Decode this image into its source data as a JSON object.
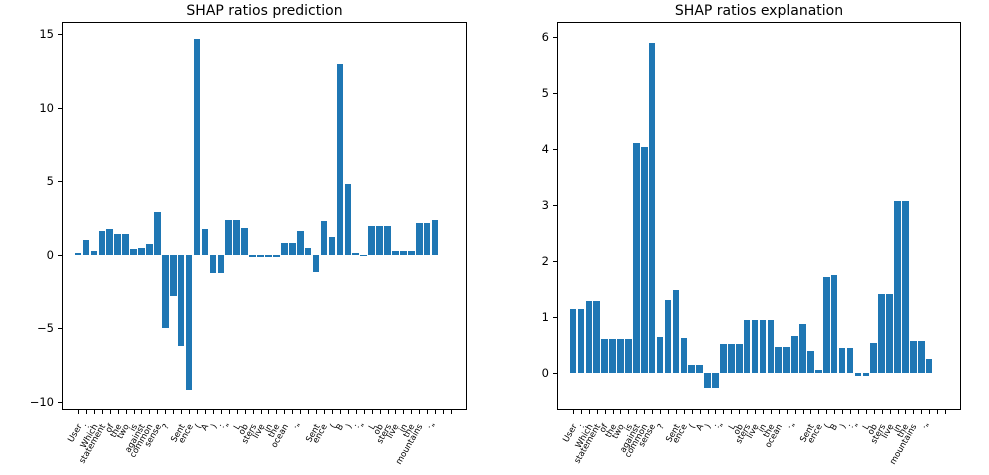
{
  "figure": {
    "background": "#ffffff",
    "bar_color": "#1f77b4",
    "spine_color": "#000000",
    "text_color": "#000000"
  },
  "chart_data": [
    {
      "type": "bar",
      "title": "SHAP ratios prediction",
      "xlabel": "",
      "ylabel": "",
      "grid": false,
      "legend": null,
      "tick_rotation": 60,
      "ylim": [
        -10.55,
        15.85
      ],
      "yticks": [
        15,
        10,
        5,
        0,
        -5,
        -10
      ],
      "categories": [
        "User",
        ":",
        "Which",
        "statement",
        "of",
        "the",
        "two",
        "is",
        "against",
        "common",
        "sense",
        "?",
        "",
        "Sent",
        "ence",
        "(",
        "A",
        ")",
        ":",
        "\"",
        "L",
        "ob",
        "sters",
        "live",
        "in",
        "the",
        "ocean",
        ".",
        "\"",
        "",
        "Sent",
        "ence",
        "(",
        "B",
        ")",
        ":",
        "\"",
        "L",
        "ob",
        "sters",
        "live",
        "in",
        "the",
        "mountains",
        ".",
        "\"",
        "",
        ""
      ],
      "values": [
        0.1,
        1.05,
        0.25,
        1.65,
        1.75,
        1.4,
        1.45,
        0.4,
        0.45,
        0.75,
        2.9,
        -5.0,
        -2.8,
        -6.2,
        -9.2,
        14.7,
        1.75,
        -1.2,
        -1.2,
        2.4,
        2.4,
        1.85,
        -0.15,
        -0.15,
        -0.15,
        -0.15,
        0.8,
        0.8,
        1.6,
        0.45,
        -1.15,
        2.3,
        1.2,
        13.0,
        4.85,
        0.1,
        -0.1,
        2.0,
        2.0,
        2.0,
        0.28,
        0.28,
        0.28,
        2.2,
        2.2,
        2.4,
        0.0,
        0.0
      ]
    },
    {
      "type": "bar",
      "title": "SHAP ratios explanation",
      "xlabel": "",
      "ylabel": "",
      "grid": false,
      "legend": null,
      "tick_rotation": 60,
      "ylim": [
        -0.66,
        6.27
      ],
      "yticks": [
        6,
        5,
        4,
        3,
        2,
        1,
        0
      ],
      "categories": [
        "User",
        ":",
        "Which",
        "statement",
        "of",
        "the",
        "two",
        "is",
        "against",
        "common",
        "sense",
        "?",
        "",
        "Sent",
        "ence",
        "(",
        "A",
        ")",
        ":",
        "\"",
        "L",
        "ob",
        "sters",
        "live",
        "in",
        "the",
        "ocean",
        ".",
        "\"",
        "",
        "Sent",
        "ence",
        "(",
        "B",
        ")",
        ":",
        "\"",
        "L",
        "ob",
        "sters",
        "live",
        "in",
        "the",
        "mountains",
        ".",
        "\"",
        "",
        ""
      ],
      "values": [
        1.15,
        1.15,
        1.29,
        1.29,
        0.6,
        0.6,
        0.6,
        0.6,
        4.1,
        4.03,
        5.9,
        0.64,
        1.31,
        1.48,
        0.62,
        0.15,
        0.14,
        -0.26,
        -0.26,
        0.52,
        0.52,
        0.52,
        0.95,
        0.95,
        0.95,
        0.95,
        0.47,
        0.47,
        0.66,
        0.87,
        0.39,
        0.06,
        1.72,
        1.76,
        0.44,
        0.44,
        -0.05,
        -0.05,
        0.54,
        1.41,
        1.41,
        3.08,
        3.08,
        0.57,
        0.57,
        0.25,
        0.0,
        0.0
      ]
    }
  ]
}
